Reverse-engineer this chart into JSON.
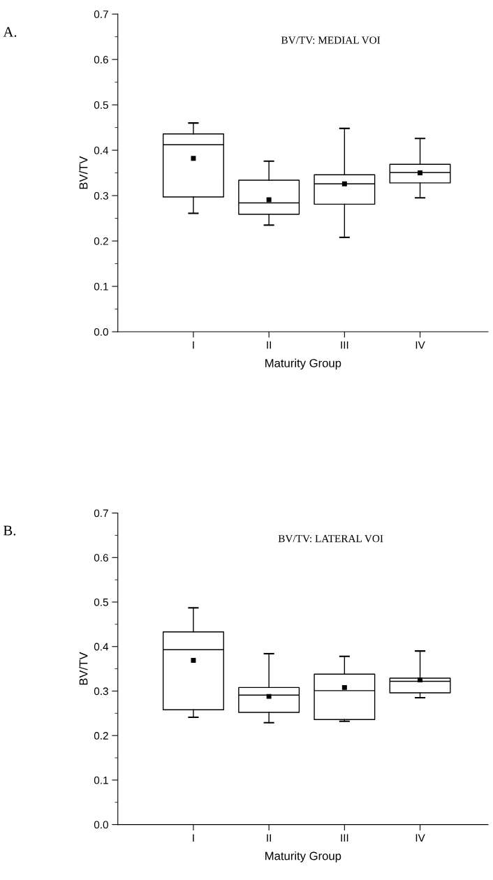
{
  "chart_data": [
    {
      "type": "box",
      "title": "BV/TV: MEDIAL VOI",
      "xlabel": "Maturity Group",
      "ylabel": "BV/TV",
      "annotations": [
        "A."
      ],
      "categories": [
        "I",
        "II",
        "III",
        "IV"
      ],
      "boxes": [
        {
          "low": 0.261,
          "q1": 0.297,
          "median": 0.412,
          "q3": 0.436,
          "high": 0.46,
          "mean": 0.382
        },
        {
          "low": 0.235,
          "q1": 0.259,
          "median": 0.284,
          "q3": 0.334,
          "high": 0.376,
          "mean": 0.291
        },
        {
          "low": 0.208,
          "q1": 0.281,
          "median": 0.326,
          "q3": 0.346,
          "high": 0.448,
          "mean": 0.326
        },
        {
          "low": 0.295,
          "q1": 0.328,
          "median": 0.351,
          "q3": 0.369,
          "high": 0.426,
          "mean": 0.35
        }
      ],
      "ylim": [
        0,
        0.7
      ],
      "yticks": [
        {
          "value": 0,
          "label": "0.0"
        },
        0.1,
        0.2,
        0.3,
        0.4,
        0.5,
        0.6,
        0.7
      ],
      "grid": false,
      "legend": false
    },
    {
      "type": "box",
      "title": "BV/TV: LATERAL VOI",
      "xlabel": "Maturity Group",
      "ylabel": "BV/TV",
      "annotations": [
        "B."
      ],
      "categories": [
        "I",
        "II",
        "III",
        "IV"
      ],
      "boxes": [
        {
          "low": 0.241,
          "q1": 0.258,
          "median": 0.393,
          "q3": 0.433,
          "high": 0.487,
          "mean": 0.369
        },
        {
          "low": 0.229,
          "q1": 0.252,
          "median": 0.291,
          "q3": 0.308,
          "high": 0.384,
          "mean": 0.288
        },
        {
          "low": 0.232,
          "q1": 0.236,
          "median": 0.301,
          "q3": 0.338,
          "high": 0.378,
          "mean": 0.308
        },
        {
          "low": 0.285,
          "q1": 0.296,
          "median": 0.322,
          "q3": 0.329,
          "high": 0.39,
          "mean": 0.325
        }
      ],
      "ylim": [
        0,
        0.7
      ],
      "yticks": [
        {
          "value": 0,
          "label": "0.0"
        },
        0.1,
        0.2,
        0.3,
        0.4,
        0.5,
        0.6,
        0.7
      ],
      "grid": false,
      "legend": false
    }
  ]
}
